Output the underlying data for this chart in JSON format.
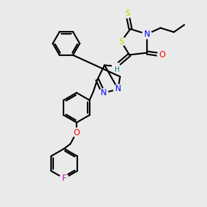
{
  "bg_color": "#eaeaea",
  "bond_color": "#000000",
  "bond_width": 1.6,
  "atom_colors": {
    "N": "#0000ff",
    "O": "#ff0000",
    "S": "#cccc00",
    "F": "#cc00cc",
    "H": "#008080",
    "C": "#000000"
  },
  "font_size_atom": 8.5,
  "font_size_small": 7.0
}
